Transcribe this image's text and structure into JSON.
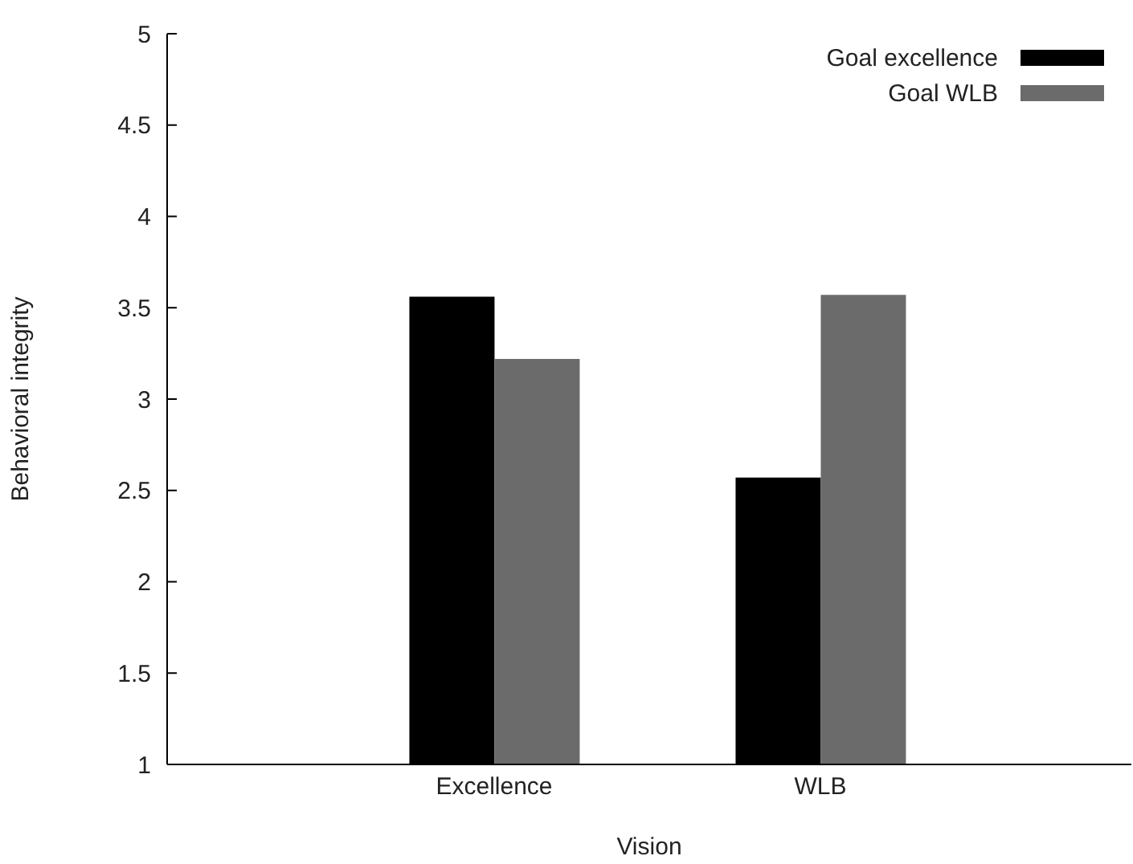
{
  "chart_data": {
    "type": "bar",
    "xlabel": "Vision",
    "ylabel": "Behavioral integrity",
    "categories": [
      "Excellence",
      "WLB"
    ],
    "series": [
      {
        "name": "Goal excellence",
        "color": "#000000",
        "values": [
          3.56,
          2.57
        ]
      },
      {
        "name": "Goal WLB",
        "color": "#6b6b6b",
        "values": [
          3.22,
          3.57
        ]
      }
    ],
    "ylim": [
      1,
      5
    ],
    "yticks": [
      1,
      1.5,
      2,
      2.5,
      3,
      3.5,
      4,
      4.5,
      5
    ],
    "grid": false,
    "legend": "top right"
  }
}
